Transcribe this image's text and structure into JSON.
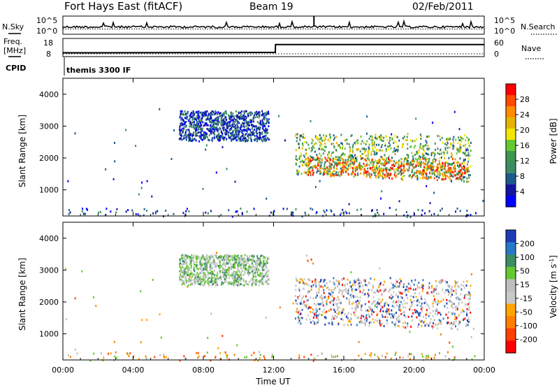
{
  "header": {
    "station": "Fort Hays East (fitACF)",
    "beam": "Beam 19",
    "date": "02/Feb/2011"
  },
  "strip_noise": {
    "left_label": "N.Sky",
    "right_label": "N.Search",
    "left_ticks": [
      "10^5",
      "10^0"
    ],
    "right_ticks": [
      "10^5",
      "10^0"
    ]
  },
  "strip_freq": {
    "left_label_line1": "Freq.",
    "left_label_line2": "[MHz]",
    "right_label": "Nave",
    "left_ticks": [
      "18",
      "8"
    ],
    "right_ticks": [
      "60",
      "0"
    ],
    "freq_series": [
      {
        "t": 0.0,
        "f": 10.1
      },
      {
        "t": 12.1,
        "f": 10.3
      },
      {
        "t": 12.11,
        "f": 14.6
      },
      {
        "t": 24.0,
        "f": 14.6
      }
    ]
  },
  "cpid": {
    "label": "CPID",
    "program": "themis 3300 IF"
  },
  "chart_data": [
    {
      "type": "heatmap",
      "name_panel": "power",
      "ylabel": "Slant Range [km]",
      "xlabel": "Time UT",
      "xlim": [
        0,
        24
      ],
      "ylim": [
        180,
        4500
      ],
      "yticks": [
        "1000",
        "2000",
        "3000",
        "4000"
      ],
      "colorbar_label": "Power [dB]",
      "colorbar_ticks": [
        "28",
        "24",
        "20",
        "16",
        "12",
        "8",
        "4"
      ],
      "colorbar_colors": [
        "#ff0000",
        "#ff4a00",
        "#ff8c00",
        "#e6b400",
        "#f2e600",
        "#64c832",
        "#3c9650",
        "#3c8c64",
        "#1e5a8c",
        "#1414a0",
        "#0000ff"
      ],
      "regions": [
        {
          "t0": 6.6,
          "t1": 11.7,
          "r0": 2550,
          "r1": 3500,
          "tone": "low"
        },
        {
          "t0": 13.2,
          "t1": 23.2,
          "r0": 1500,
          "r1": 2800,
          "tone": "mixed"
        },
        {
          "t0": 13.8,
          "t1": 23.1,
          "r0": 1500,
          "r1": 2050,
          "tone": "high"
        },
        {
          "t0": 0.2,
          "t1": 23.8,
          "r0": 180,
          "r1": 450,
          "tone": "low"
        }
      ]
    },
    {
      "type": "heatmap",
      "name_panel": "velocity",
      "ylabel": "Slant Range [km]",
      "xlabel": "Time UT",
      "xlim": [
        0,
        24
      ],
      "ylim": [
        180,
        4500
      ],
      "yticks": [
        "1000",
        "2000",
        "3000",
        "4000"
      ],
      "colorbar_label": "Velocity [m s^-1]",
      "colorbar_ticks": [
        "200",
        "100",
        "50",
        "15",
        "-15",
        "-50",
        "-100",
        "-200"
      ],
      "colorbar_colors": [
        "#1e3cb4",
        "#2878c8",
        "#3c8c64",
        "#64c832",
        "#bebebe",
        "#c8c8c8",
        "#ffa500",
        "#ff8000",
        "#ff4000",
        "#ff0000"
      ],
      "regions": [
        {
          "t0": 6.6,
          "t1": 11.7,
          "r0": 2550,
          "r1": 3500,
          "tone": "green"
        },
        {
          "t0": 13.2,
          "t1": 23.2,
          "r0": 1350,
          "r1": 2800,
          "tone": "grey"
        },
        {
          "t0": 0.2,
          "t1": 23.8,
          "r0": 180,
          "r1": 450,
          "tone": "orange"
        }
      ]
    }
  ],
  "time_axis": {
    "ticks": [
      "00:00",
      "04:00",
      "08:00",
      "12:00",
      "16:00",
      "20:00",
      "00:00"
    ],
    "label": "Time UT"
  }
}
